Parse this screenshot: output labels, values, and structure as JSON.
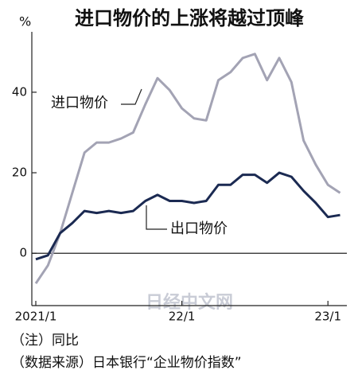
{
  "chart_data": {
    "type": "line",
    "title": "进口物价的上涨将越过顶峰",
    "y_unit": "%",
    "categories": [
      "2021/1",
      null,
      null,
      null,
      null,
      null,
      null,
      null,
      null,
      null,
      null,
      null,
      "22/1",
      null,
      null,
      null,
      null,
      null,
      null,
      null,
      null,
      null,
      null,
      null,
      "23/1",
      null
    ],
    "series": [
      {
        "name": "进口物价",
        "color": "#a3a3b4",
        "values": [
          -7.5,
          -3,
          5,
          15,
          25,
          27.5,
          27.5,
          28.5,
          30,
          37,
          43.5,
          40.5,
          36,
          33.5,
          33,
          43,
          45,
          48.5,
          49.5,
          43,
          48.5,
          42.5,
          28,
          22,
          17,
          15
        ]
      },
      {
        "name": "出口物价",
        "color": "#1b2a52",
        "values": [
          -1.5,
          -0.5,
          5,
          7.5,
          10.5,
          10,
          10.5,
          10,
          10.5,
          13,
          14.5,
          13,
          13,
          12.5,
          13,
          17,
          17,
          19.5,
          19.5,
          17.5,
          20,
          19,
          15.5,
          12.5,
          9,
          9.5
        ]
      }
    ],
    "ylim": [
      -13,
      55
    ],
    "yticks": [
      0,
      20,
      40
    ],
    "watermark": "日经中文网",
    "notes": [
      "（注）同比",
      "（数据来源）日本银行“企业物价指数”"
    ]
  }
}
